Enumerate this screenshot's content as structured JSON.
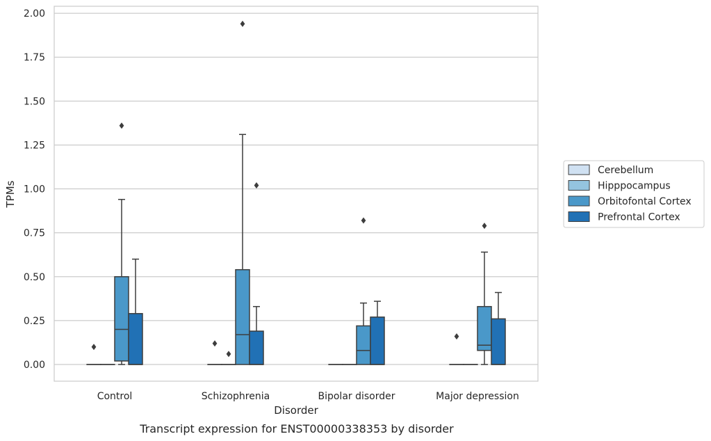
{
  "chart_data": {
    "type": "box",
    "xlabel": "Disorder",
    "ylabel": "TPMs",
    "caption": "Transcript expression for ENST00000338353 by disorder",
    "categories": [
      "Control",
      "Schizophrenia",
      "Bipolar disorder",
      "Major depression"
    ],
    "yticks": [
      "0.00",
      "0.25",
      "0.50",
      "0.75",
      "1.00",
      "1.25",
      "1.50",
      "1.75",
      "2.00"
    ],
    "ylim": [
      -0.095,
      2.04
    ],
    "grid": "horizontal",
    "legend_position": "right",
    "series": [
      {
        "name": "Cerebellum",
        "color": "#d0e1f2",
        "boxes": [
          {
            "category": "Control",
            "q1": 0,
            "median": 0,
            "q3": 0,
            "whisker_low": 0,
            "whisker_high": 0,
            "outliers": [
              0.1
            ]
          },
          {
            "category": "Schizophrenia",
            "q1": 0,
            "median": 0,
            "q3": 0,
            "whisker_low": 0,
            "whisker_high": 0,
            "outliers": [
              0.12
            ]
          },
          {
            "category": "Bipolar disorder",
            "q1": 0,
            "median": 0,
            "q3": 0,
            "whisker_low": 0,
            "whisker_high": 0,
            "outliers": []
          },
          {
            "category": "Major depression",
            "q1": 0,
            "median": 0,
            "q3": 0,
            "whisker_low": 0,
            "whisker_high": 0,
            "outliers": [
              0.16
            ]
          }
        ]
      },
      {
        "name": "Hipppocampus",
        "color": "#94c4df",
        "boxes": [
          {
            "category": "Control",
            "q1": 0,
            "median": 0,
            "q3": 0,
            "whisker_low": 0,
            "whisker_high": 0,
            "outliers": []
          },
          {
            "category": "Schizophrenia",
            "q1": 0,
            "median": 0,
            "q3": 0,
            "whisker_low": 0,
            "whisker_high": 0,
            "outliers": [
              0.06
            ]
          },
          {
            "category": "Bipolar disorder",
            "q1": 0,
            "median": 0,
            "q3": 0,
            "whisker_low": 0,
            "whisker_high": 0,
            "outliers": []
          },
          {
            "category": "Major depression",
            "q1": 0,
            "median": 0,
            "q3": 0,
            "whisker_low": 0,
            "whisker_high": 0,
            "outliers": []
          }
        ]
      },
      {
        "name": "Orbitofontal Cortex",
        "color": "#4a98c9",
        "boxes": [
          {
            "category": "Control",
            "q1": 0.02,
            "median": 0.2,
            "q3": 0.5,
            "whisker_low": 0,
            "whisker_high": 0.94,
            "outliers": [
              1.36
            ]
          },
          {
            "category": "Schizophrenia",
            "q1": 0,
            "median": 0.17,
            "q3": 0.54,
            "whisker_low": 0,
            "whisker_high": 1.31,
            "outliers": [
              1.94
            ]
          },
          {
            "category": "Bipolar disorder",
            "q1": 0,
            "median": 0.08,
            "q3": 0.22,
            "whisker_low": 0,
            "whisker_high": 0.35,
            "outliers": [
              0.82
            ]
          },
          {
            "category": "Major depression",
            "q1": 0.08,
            "median": 0.11,
            "q3": 0.33,
            "whisker_low": 0,
            "whisker_high": 0.64,
            "outliers": [
              0.79
            ]
          }
        ]
      },
      {
        "name": "Prefrontal Cortex",
        "color": "#2171b5",
        "boxes": [
          {
            "category": "Control",
            "q1": 0,
            "median": 0,
            "q3": 0.29,
            "whisker_low": 0,
            "whisker_high": 0.6,
            "outliers": []
          },
          {
            "category": "Schizophrenia",
            "q1": 0,
            "median": 0,
            "q3": 0.19,
            "whisker_low": 0,
            "whisker_high": 0.33,
            "outliers": [
              1.02
            ]
          },
          {
            "category": "Bipolar disorder",
            "q1": 0,
            "median": 0,
            "q3": 0.27,
            "whisker_low": 0,
            "whisker_high": 0.36,
            "outliers": []
          },
          {
            "category": "Major depression",
            "q1": 0,
            "median": 0,
            "q3": 0.26,
            "whisker_low": 0,
            "whisker_high": 0.41,
            "outliers": []
          }
        ]
      }
    ]
  }
}
